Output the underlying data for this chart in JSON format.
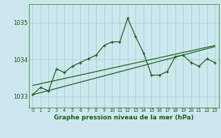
{
  "xlabel": "Graphe pression niveau de la mer (hPa)",
  "bg_color": "#cce8ee",
  "grid_color": "#aacccc",
  "line_color": "#1a5c1a",
  "ylim": [
    1032.7,
    1035.5
  ],
  "xlim": [
    -0.5,
    23.5
  ],
  "yticks": [
    1033,
    1034,
    1035
  ],
  "xticks": [
    0,
    1,
    2,
    3,
    4,
    5,
    6,
    7,
    8,
    9,
    10,
    11,
    12,
    13,
    14,
    15,
    16,
    17,
    18,
    19,
    20,
    21,
    22,
    23
  ],
  "hours": [
    0,
    1,
    2,
    3,
    4,
    5,
    6,
    7,
    8,
    9,
    10,
    11,
    12,
    13,
    14,
    15,
    16,
    17,
    18,
    19,
    20,
    21,
    22,
    23
  ],
  "pressure": [
    1033.05,
    1033.25,
    1033.15,
    1033.75,
    1033.65,
    1033.82,
    1033.92,
    1034.02,
    1034.12,
    1034.38,
    1034.48,
    1034.48,
    1035.12,
    1034.62,
    1034.18,
    1033.58,
    1033.58,
    1033.68,
    1034.08,
    1034.12,
    1033.92,
    1033.82,
    1034.02,
    1033.92
  ],
  "trend1_x": [
    0,
    23
  ],
  "trend1_y": [
    1033.3,
    1034.38
  ],
  "trend2_x": [
    0,
    23
  ],
  "trend2_y": [
    1033.05,
    1034.35
  ]
}
